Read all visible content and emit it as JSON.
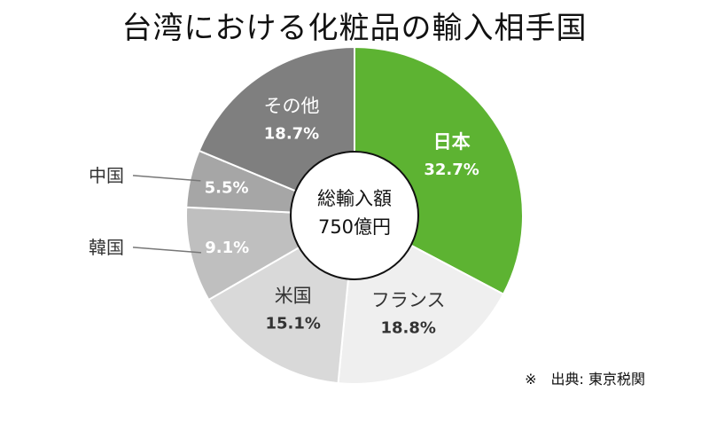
{
  "chart_data": {
    "type": "pie",
    "style": "donut",
    "title": "台湾における化粧品の輸入相手国",
    "center_label": {
      "line1": "総輸入額",
      "line2": "750億円"
    },
    "source": "※　出典: 東京税関",
    "slices": [
      {
        "name": "日本",
        "value": 32.7,
        "label": "32.7%",
        "color": "#5db332",
        "name_color": "#ffffff",
        "value_color": "#ffffff",
        "label_mode": "inside",
        "name_bold": true
      },
      {
        "name": "フランス",
        "value": 18.8,
        "label": "18.8%",
        "color": "#efefef",
        "name_color": "#333333",
        "value_color": "#333333",
        "label_mode": "inside",
        "name_bold": false
      },
      {
        "name": "米国",
        "value": 15.1,
        "label": "15.1%",
        "color": "#d9d9d9",
        "name_color": "#333333",
        "value_color": "#333333",
        "label_mode": "inside",
        "name_bold": false
      },
      {
        "name": "韓国",
        "value": 9.1,
        "label": "9.1%",
        "color": "#bfbfbf",
        "name_color": "#333333",
        "value_color": "#ffffff",
        "label_mode": "callout",
        "name_bold": false
      },
      {
        "name": "中国",
        "value": 5.5,
        "label": "5.5%",
        "color": "#a6a6a6",
        "name_color": "#333333",
        "value_color": "#ffffff",
        "label_mode": "callout",
        "name_bold": false
      },
      {
        "name": "その他",
        "value": 18.7,
        "label": "18.7%",
        "color": "#7f7f7f",
        "name_color": "#ffffff",
        "value_color": "#ffffff",
        "label_mode": "inside",
        "name_bold": false
      }
    ]
  }
}
